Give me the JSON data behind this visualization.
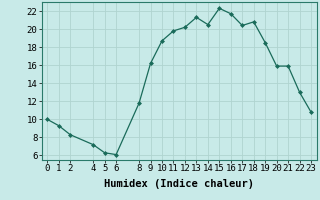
{
  "x": [
    0,
    1,
    2,
    4,
    5,
    6,
    8,
    9,
    10,
    11,
    12,
    13,
    14,
    15,
    16,
    17,
    18,
    19,
    20,
    21,
    22,
    23
  ],
  "y": [
    10,
    9.3,
    8.3,
    7.2,
    6.3,
    6.1,
    11.8,
    16.2,
    18.7,
    19.8,
    20.2,
    21.3,
    20.5,
    22.3,
    21.7,
    20.4,
    20.8,
    18.5,
    15.9,
    15.9,
    13.0,
    10.8
  ],
  "line_color": "#1a6b5a",
  "marker_color": "#1a6b5a",
  "bg_color": "#c8eae8",
  "grid_color": "#b0d4d0",
  "xlabel": "Humidex (Indice chaleur)",
  "xlabel_fontsize": 7.5,
  "tick_fontsize": 6.5,
  "ylim": [
    5.5,
    23.0
  ],
  "xlim": [
    -0.5,
    23.5
  ],
  "yticks": [
    6,
    8,
    10,
    12,
    14,
    16,
    18,
    20,
    22
  ],
  "xticks": [
    0,
    1,
    2,
    4,
    5,
    6,
    8,
    9,
    10,
    11,
    12,
    13,
    14,
    15,
    16,
    17,
    18,
    19,
    20,
    21,
    22,
    23
  ]
}
